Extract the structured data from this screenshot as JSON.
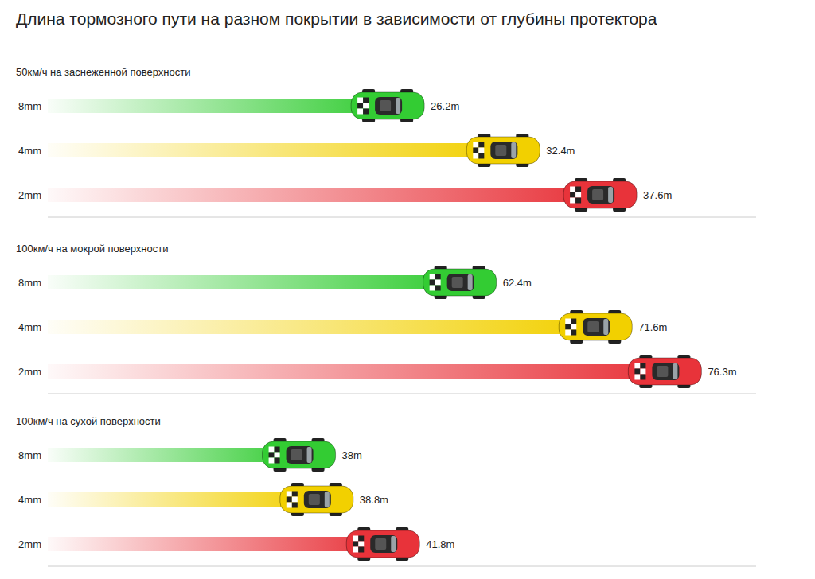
{
  "title": "Длина тормозного пути на разном покрытии в зависимости от глубины протектора",
  "chart_data": [
    {
      "type": "bar",
      "orientation": "horizontal",
      "title": "50км/ч на заснеженной поверхности",
      "categories": [
        "8mm",
        "4mm",
        "2mm"
      ],
      "values": [
        26.2,
        32.4,
        37.6
      ],
      "value_labels": [
        "26.2m",
        "32.4m",
        "37.6m"
      ],
      "colors": [
        "#33cc33",
        "#f2d000",
        "#e8333a"
      ],
      "xlim": [
        6,
        44
      ],
      "data_labels": true,
      "tick_labels": "y"
    },
    {
      "type": "bar",
      "orientation": "horizontal",
      "title": "100км/ч на мокрой поверхности",
      "categories": [
        "8mm",
        "4mm",
        "2mm"
      ],
      "values": [
        62.4,
        71.6,
        76.3
      ],
      "value_labels": [
        "62.4m",
        "71.6m",
        "76.3m"
      ],
      "colors": [
        "#33cc33",
        "#f2d000",
        "#e8333a"
      ],
      "xlim": [
        32,
        80
      ],
      "data_labels": true,
      "tick_labels": "y"
    },
    {
      "type": "bar",
      "orientation": "horizontal",
      "title": "100км/ч на сухой поверхности",
      "categories": [
        "8mm",
        "4mm",
        "2mm"
      ],
      "values": [
        38,
        38.8,
        41.8
      ],
      "value_labels": [
        "38m",
        "38.8m",
        "41.8m"
      ],
      "colors": [
        "#33cc33",
        "#f2d000",
        "#e8333a"
      ],
      "xlim": [
        25,
        57
      ],
      "data_labels": true,
      "tick_labels": "y"
    }
  ]
}
